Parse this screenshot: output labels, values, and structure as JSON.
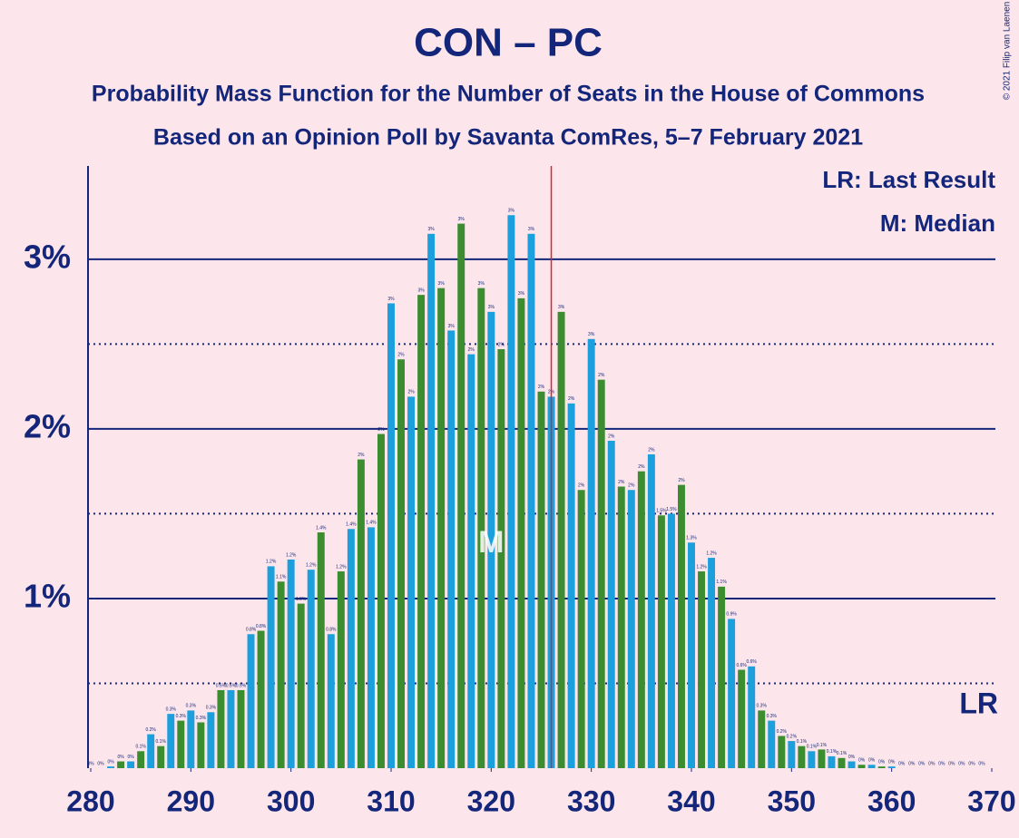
{
  "chart_data": {
    "type": "bar",
    "title": "CON – PC",
    "subtitle": "Probability Mass Function for the Number of Seats in the House of Commons",
    "subtitle2": "Based on an Opinion Poll by Savanta ComRes, 5–7 February 2021",
    "copyright": "© 2021 Filip van Laenen",
    "legend": [
      "LR: Last Result",
      "M: Median"
    ],
    "last_result": 326,
    "last_result_label": "LR",
    "median": 320,
    "median_label": "M",
    "colors": [
      "#1b9fdd",
      "#3b8d30"
    ],
    "x": [
      280,
      281,
      282,
      283,
      284,
      285,
      286,
      287,
      288,
      289,
      290,
      291,
      292,
      293,
      294,
      295,
      296,
      297,
      298,
      299,
      300,
      301,
      302,
      303,
      304,
      305,
      306,
      307,
      308,
      309,
      310,
      311,
      312,
      313,
      314,
      315,
      316,
      317,
      318,
      319,
      320,
      321,
      322,
      323,
      324,
      325,
      326,
      327,
      328,
      329,
      330,
      331,
      332,
      333,
      334,
      335,
      336,
      337,
      338,
      339,
      340,
      341,
      342,
      343,
      344,
      345,
      346,
      347,
      348,
      349,
      350,
      351,
      352,
      353,
      354,
      355,
      356,
      357,
      358,
      359,
      360,
      361,
      362,
      363,
      364,
      365,
      366,
      367,
      368,
      369
    ],
    "values": [
      0,
      0,
      0.01,
      0.04,
      0.04,
      0.1,
      0.2,
      0.13,
      0.32,
      0.28,
      0.34,
      0.27,
      0.33,
      0.46,
      0.46,
      0.46,
      0.79,
      0.81,
      1.19,
      1.1,
      1.23,
      0.97,
      1.17,
      1.39,
      0.79,
      1.16,
      1.41,
      1.82,
      1.42,
      1.97,
      2.74,
      2.41,
      2.19,
      2.79,
      3.15,
      2.83,
      2.58,
      3.21,
      2.44,
      2.83,
      2.69,
      2.47,
      3.26,
      2.77,
      3.15,
      2.22,
      2.19,
      2.69,
      2.15,
      1.64,
      2.53,
      2.29,
      1.93,
      1.66,
      1.64,
      1.75,
      1.85,
      1.49,
      1.5,
      1.67,
      1.33,
      1.16,
      1.24,
      1.07,
      0.88,
      0.58,
      0.6,
      0.34,
      0.28,
      0.19,
      0.16,
      0.13,
      0.1,
      0.11,
      0.07,
      0.06,
      0.04,
      0.02,
      0.02,
      0.01,
      0.01,
      0,
      0,
      0,
      0,
      0,
      0,
      0,
      0,
      0
    ],
    "value_labels": [
      "0%",
      "0%",
      "0%",
      "0%",
      "0%",
      "0.1%",
      "0.2%",
      "0.1%",
      "0.3%",
      "0.3%",
      "0.3%",
      "0.3%",
      "0.3%",
      "0.5%",
      "0.5%",
      "0.5%",
      "0.8%",
      "0.8%",
      "1.2%",
      "1.1%",
      "1.2%",
      "1.0%",
      "1.2%",
      "1.4%",
      "0.8%",
      "1.2%",
      "1.4%",
      "2%",
      "1.4%",
      "2%",
      "3%",
      "2%",
      "2%",
      "3%",
      "3%",
      "3%",
      "3%",
      "3%",
      "2%",
      "3%",
      "3%",
      "2%",
      "3%",
      "3%",
      "3%",
      "2%",
      "2%",
      "3%",
      "2%",
      "2%",
      "3%",
      "2%",
      "2%",
      "2%",
      "2%",
      "2%",
      "2%",
      "1.5%",
      "1.5%",
      "2%",
      "1.3%",
      "1.2%",
      "1.2%",
      "1.1%",
      "0.9%",
      "0.6%",
      "0.6%",
      "0.3%",
      "0.3%",
      "0.2%",
      "0.2%",
      "0.1%",
      "0.1%",
      "0.1%",
      "0.1%",
      "0.1%",
      "0%",
      "0%",
      "0%",
      "0%",
      "0%",
      "0%",
      "0%",
      "0%",
      "0%",
      "0%",
      "0%",
      "0%",
      "0%",
      "0%"
    ],
    "xlim": [
      280,
      370
    ],
    "xticks": [
      280,
      290,
      300,
      310,
      320,
      330,
      340,
      350,
      360,
      370
    ],
    "ylim": [
      0,
      3.55
    ],
    "yticks": [
      {
        "value": 1,
        "label": "1%"
      },
      {
        "value": 2,
        "label": "2%"
      },
      {
        "value": 3,
        "label": "3%"
      }
    ],
    "minor_yticks": [
      0.5,
      1.5,
      2.5
    ],
    "grid": true
  }
}
